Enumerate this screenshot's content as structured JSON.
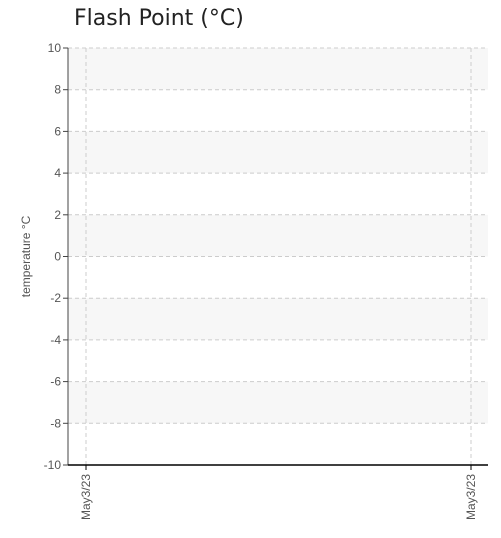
{
  "chart_data": {
    "type": "line",
    "title": "Flash Point (°C)",
    "xlabel": "",
    "ylabel": "temperature °C",
    "x": [
      "May3/23",
      "May3/23"
    ],
    "series": [],
    "ylim": [
      -10,
      10
    ],
    "yticks": [
      10,
      8,
      6,
      4,
      2,
      0,
      -2,
      -4,
      -6,
      -8,
      -10
    ],
    "xtick_labels": [
      "May3/23",
      "May3/23"
    ],
    "grid": true,
    "band_color": "#f7f7f7",
    "grid_color": "#cccccc",
    "axis_color": "#000000"
  }
}
